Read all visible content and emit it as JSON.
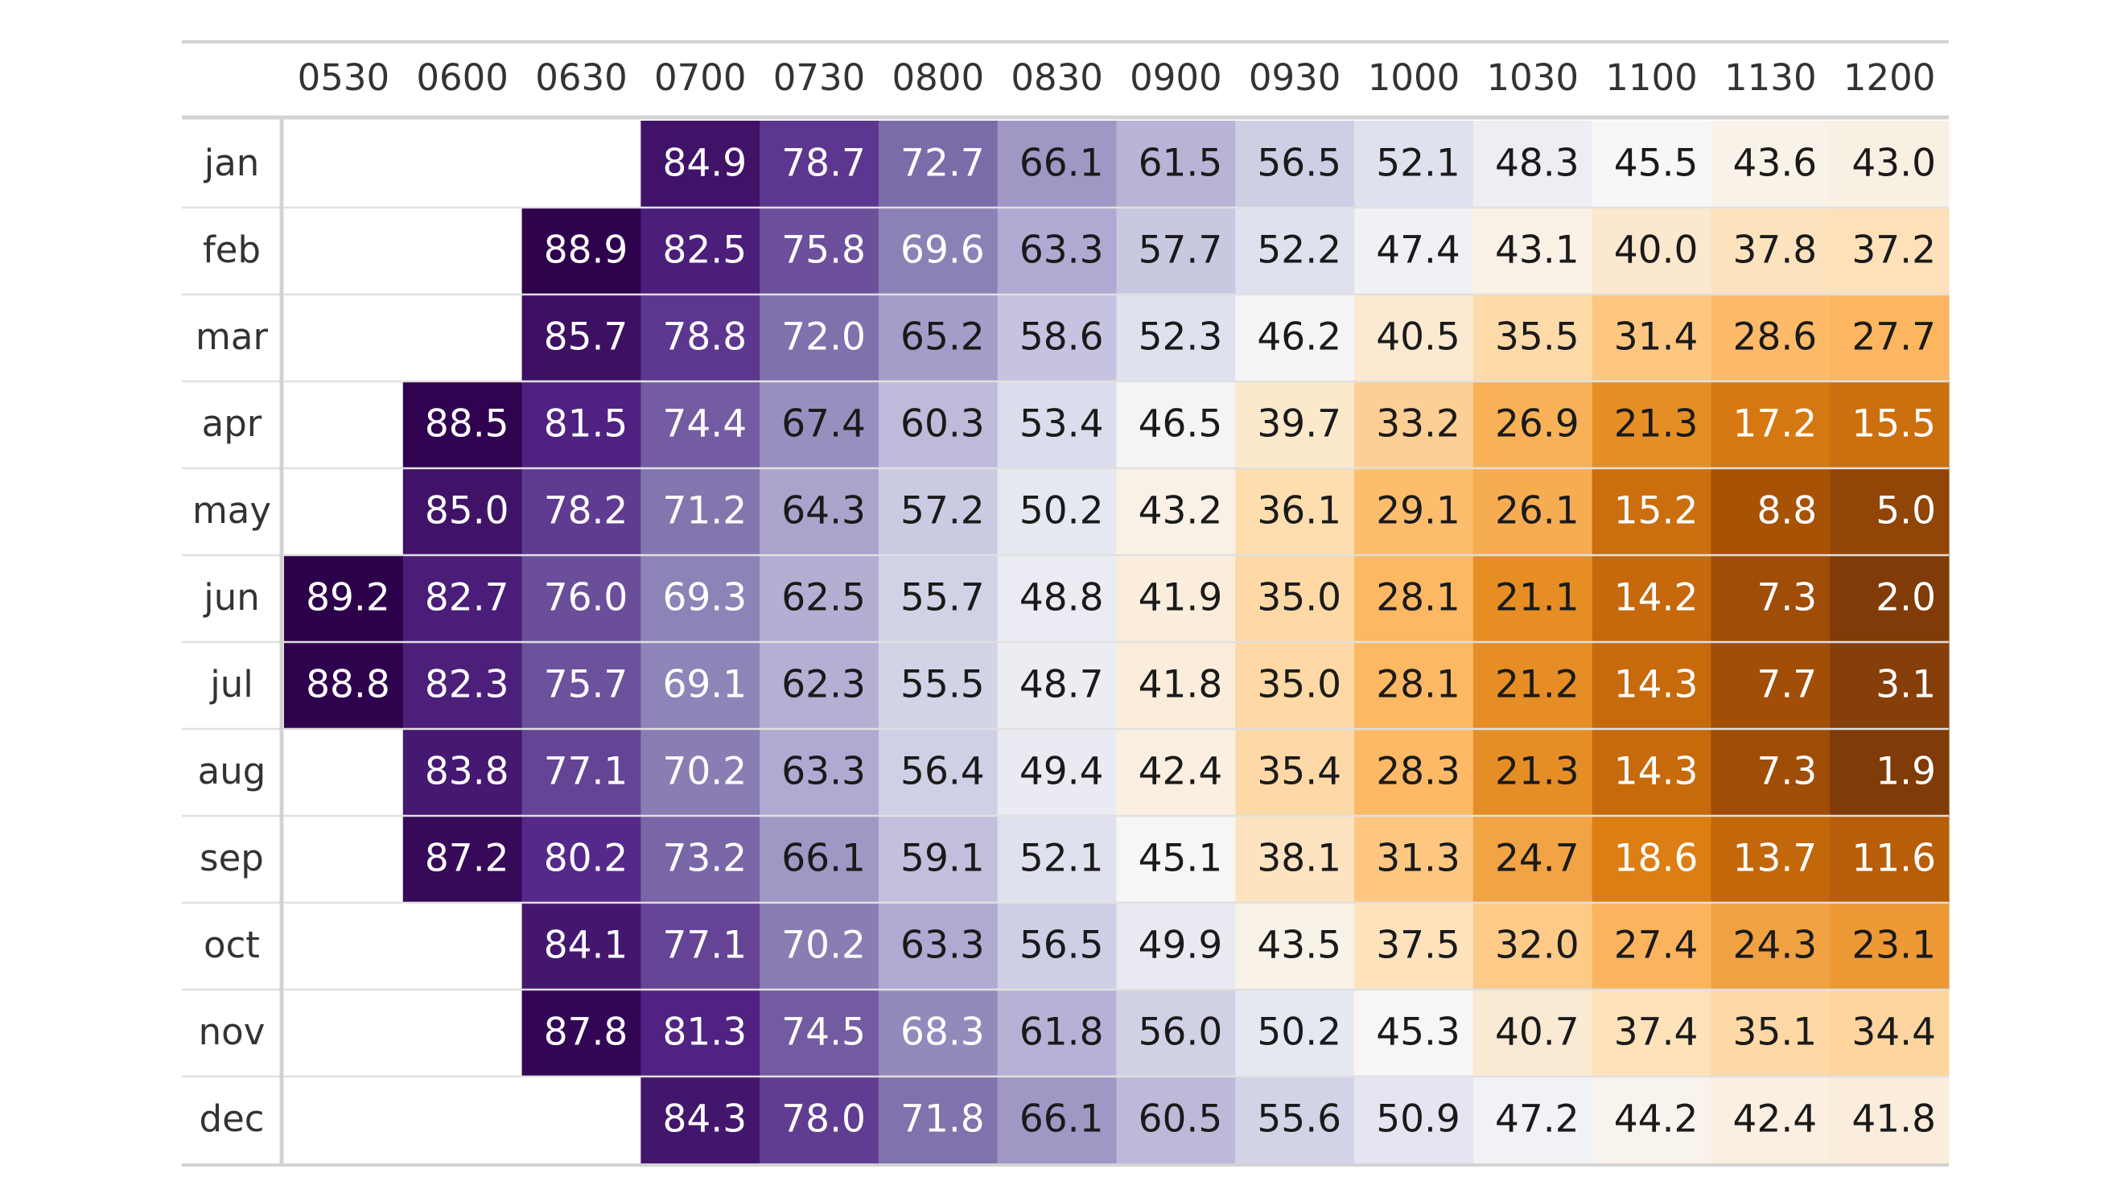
{
  "chart_data": {
    "type": "heatmap",
    "columns": [
      "0530",
      "0600",
      "0630",
      "0700",
      "0730",
      "0800",
      "0830",
      "0900",
      "0930",
      "1000",
      "1030",
      "1100",
      "1130",
      "1200"
    ],
    "rows": [
      "jan",
      "feb",
      "mar",
      "apr",
      "may",
      "jun",
      "jul",
      "aug",
      "sep",
      "oct",
      "nov",
      "dec"
    ],
    "values": [
      [
        null,
        null,
        null,
        84.9,
        78.7,
        72.7,
        66.1,
        61.5,
        56.5,
        52.1,
        48.3,
        45.5,
        43.6,
        43.0
      ],
      [
        null,
        null,
        88.9,
        82.5,
        75.8,
        69.6,
        63.3,
        57.7,
        52.2,
        47.4,
        43.1,
        40.0,
        37.8,
        37.2
      ],
      [
        null,
        null,
        85.7,
        78.8,
        72.0,
        65.2,
        58.6,
        52.3,
        46.2,
        40.5,
        35.5,
        31.4,
        28.6,
        27.7
      ],
      [
        null,
        88.5,
        81.5,
        74.4,
        67.4,
        60.3,
        53.4,
        46.5,
        39.7,
        33.2,
        26.9,
        21.3,
        17.2,
        15.5
      ],
      [
        null,
        85.0,
        78.2,
        71.2,
        64.3,
        57.2,
        50.2,
        43.2,
        36.1,
        29.1,
        26.1,
        15.2,
        8.8,
        5.0
      ],
      [
        89.2,
        82.7,
        76.0,
        69.3,
        62.5,
        55.7,
        48.8,
        41.9,
        35.0,
        28.1,
        21.1,
        14.2,
        7.3,
        2.0
      ],
      [
        88.8,
        82.3,
        75.7,
        69.1,
        62.3,
        55.5,
        48.7,
        41.8,
        35.0,
        28.1,
        21.2,
        14.3,
        7.7,
        3.1
      ],
      [
        null,
        83.8,
        77.1,
        70.2,
        63.3,
        56.4,
        49.4,
        42.4,
        35.4,
        28.3,
        21.3,
        14.3,
        7.3,
        1.9
      ],
      [
        null,
        87.2,
        80.2,
        73.2,
        66.1,
        59.1,
        52.1,
        45.1,
        38.1,
        31.3,
        24.7,
        18.6,
        13.7,
        11.6
      ],
      [
        null,
        null,
        84.1,
        77.1,
        70.2,
        63.3,
        56.5,
        49.9,
        43.5,
        37.5,
        32.0,
        27.4,
        24.3,
        23.1
      ],
      [
        null,
        null,
        87.8,
        81.3,
        74.5,
        68.3,
        61.8,
        56.0,
        50.2,
        45.3,
        40.7,
        37.4,
        35.1,
        34.4
      ],
      [
        null,
        null,
        null,
        84.3,
        78.0,
        71.8,
        66.1,
        60.5,
        55.6,
        50.9,
        47.2,
        44.2,
        42.4,
        41.8
      ]
    ],
    "colors": {
      "palette": [
        "#2d004b",
        "#542788",
        "#8073ac",
        "#b2abd2",
        "#d8daeb",
        "#f7f7f7",
        "#fee0b6",
        "#fdb863",
        "#e08214",
        "#b35806",
        "#7f3b08"
      ],
      "border": "#d3d3d3",
      "grid": "#e0e0e0",
      "text_dark": "#1a1a1a",
      "text_light": "#ffffff",
      "header_text": "#333333"
    }
  }
}
